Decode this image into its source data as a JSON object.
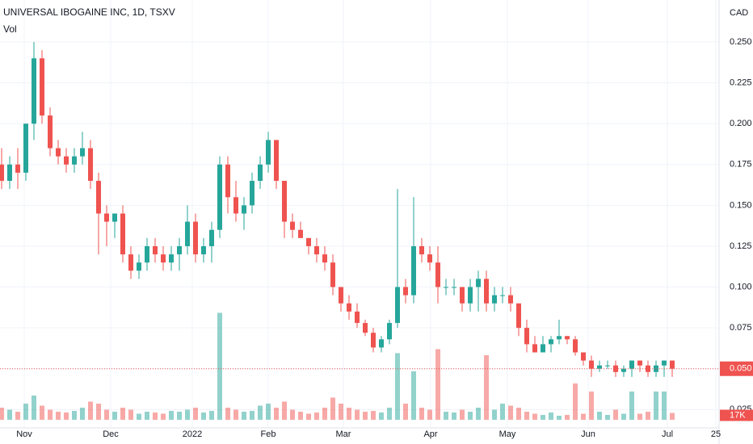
{
  "chart_data": {
    "type": "candlestick",
    "title": "UNIVERSAL IBOGAINE INC, 1D, TSXV",
    "volume_title": "Vol",
    "currency": "CAD",
    "up_color": "#26a69a",
    "down_color": "#ef5350",
    "grid": true,
    "open": [
      0.175,
      0.165,
      0.175,
      0.17,
      0.2,
      0.24,
      0.205,
      0.185,
      0.18,
      0.175,
      0.18,
      0.185,
      0.165,
      0.145,
      0.14,
      0.145,
      0.12,
      0.11,
      0.115,
      0.125,
      0.12,
      0.115,
      0.12,
      0.125,
      0.14,
      0.12,
      0.125,
      0.135,
      0.175,
      0.155,
      0.145,
      0.15,
      0.165,
      0.175,
      0.19,
      0.165,
      0.14,
      0.135,
      0.13,
      0.125,
      0.12,
      0.115,
      0.1,
      0.09,
      0.085,
      0.078,
      0.072,
      0.063,
      0.068,
      0.078,
      0.1,
      0.095,
      0.125,
      0.12,
      0.115,
      0.1,
      0.1,
      0.1,
      0.09,
      0.1,
      0.105,
      0.09,
      0.095,
      0.095,
      0.09,
      0.075,
      0.065,
      0.06,
      0.065,
      0.068,
      0.07,
      0.068,
      0.06,
      0.055,
      0.05,
      0.052,
      0.052,
      0.048,
      0.05,
      0.055,
      0.052,
      0.048,
      0.052,
      0.055
    ],
    "high": [
      0.185,
      0.18,
      0.185,
      0.2,
      0.25,
      0.245,
      0.21,
      0.19,
      0.185,
      0.185,
      0.195,
      0.19,
      0.17,
      0.15,
      0.145,
      0.15,
      0.125,
      0.12,
      0.13,
      0.13,
      0.125,
      0.125,
      0.13,
      0.15,
      0.145,
      0.13,
      0.14,
      0.18,
      0.18,
      0.165,
      0.155,
      0.17,
      0.18,
      0.195,
      0.19,
      0.165,
      0.145,
      0.14,
      0.13,
      0.13,
      0.125,
      0.12,
      0.1,
      0.095,
      0.09,
      0.08,
      0.075,
      0.07,
      0.08,
      0.16,
      0.105,
      0.155,
      0.13,
      0.125,
      0.125,
      0.105,
      0.105,
      0.1,
      0.105,
      0.11,
      0.11,
      0.1,
      0.1,
      0.1,
      0.09,
      0.08,
      0.07,
      0.07,
      0.07,
      0.08,
      0.07,
      0.07,
      0.06,
      0.058,
      0.055,
      0.055,
      0.055,
      0.052,
      0.055,
      0.055,
      0.055,
      0.055,
      0.055,
      0.055
    ],
    "low": [
      0.16,
      0.16,
      0.16,
      0.165,
      0.19,
      0.2,
      0.18,
      0.175,
      0.17,
      0.17,
      0.175,
      0.16,
      0.12,
      0.125,
      0.13,
      0.115,
      0.105,
      0.105,
      0.11,
      0.115,
      0.11,
      0.11,
      0.11,
      0.12,
      0.115,
      0.115,
      0.115,
      0.13,
      0.145,
      0.14,
      0.135,
      0.145,
      0.16,
      0.17,
      0.16,
      0.13,
      0.13,
      0.13,
      0.12,
      0.115,
      0.11,
      0.095,
      0.085,
      0.08,
      0.075,
      0.07,
      0.06,
      0.06,
      0.065,
      0.075,
      0.09,
      0.09,
      0.115,
      0.11,
      0.09,
      0.095,
      0.095,
      0.085,
      0.085,
      0.085,
      0.085,
      0.085,
      0.09,
      0.085,
      0.07,
      0.06,
      0.06,
      0.06,
      0.06,
      0.065,
      0.065,
      0.058,
      0.052,
      0.045,
      0.048,
      0.05,
      0.045,
      0.045,
      0.045,
      0.048,
      0.045,
      0.045,
      0.045,
      0.045
    ],
    "close": [
      0.165,
      0.175,
      0.17,
      0.2,
      0.24,
      0.205,
      0.185,
      0.18,
      0.175,
      0.18,
      0.185,
      0.165,
      0.145,
      0.14,
      0.145,
      0.12,
      0.11,
      0.115,
      0.125,
      0.12,
      0.115,
      0.12,
      0.125,
      0.14,
      0.12,
      0.125,
      0.135,
      0.175,
      0.155,
      0.145,
      0.15,
      0.165,
      0.175,
      0.19,
      0.165,
      0.14,
      0.135,
      0.13,
      0.125,
      0.12,
      0.115,
      0.1,
      0.09,
      0.085,
      0.078,
      0.072,
      0.063,
      0.068,
      0.078,
      0.1,
      0.095,
      0.125,
      0.12,
      0.115,
      0.1,
      0.1,
      0.1,
      0.09,
      0.1,
      0.105,
      0.09,
      0.095,
      0.095,
      0.09,
      0.075,
      0.065,
      0.06,
      0.065,
      0.068,
      0.07,
      0.068,
      0.06,
      0.055,
      0.05,
      0.052,
      0.052,
      0.048,
      0.05,
      0.055,
      0.052,
      0.048,
      0.052,
      0.055,
      0.05
    ],
    "volume": [
      30000,
      25000,
      20000,
      40000,
      60000,
      35000,
      25000,
      20000,
      18000,
      22000,
      30000,
      45000,
      40000,
      25000,
      20000,
      30000,
      25000,
      15000,
      20000,
      18000,
      15000,
      22000,
      20000,
      25000,
      30000,
      18000,
      22000,
      265000,
      30000,
      25000,
      20000,
      22000,
      35000,
      40000,
      30000,
      45000,
      25000,
      20000,
      15000,
      18000,
      30000,
      55000,
      40000,
      30000,
      25000,
      20000,
      22000,
      18000,
      30000,
      165000,
      40000,
      120000,
      30000,
      25000,
      175000,
      20000,
      18000,
      25000,
      20000,
      30000,
      160000,
      25000,
      40000,
      35000,
      30000,
      20000,
      15000,
      12000,
      18000,
      10000,
      12000,
      90000,
      15000,
      70000,
      20000,
      12000,
      25000,
      15000,
      70000,
      15000,
      20000,
      70000,
      70000,
      17000
    ],
    "last_close_label": "0.050",
    "last_volume_label": "17K",
    "ylim": [
      0.0138,
      0.2757
    ],
    "yticks": [
      {
        "value": 0.025,
        "label": "0.025"
      },
      {
        "value": 0.05,
        "label": "0.050"
      },
      {
        "value": 0.075,
        "label": "0.075"
      },
      {
        "value": 0.1,
        "label": "0.100"
      },
      {
        "value": 0.125,
        "label": "0.125"
      },
      {
        "value": 0.15,
        "label": "0.150"
      },
      {
        "value": 0.175,
        "label": "0.175"
      },
      {
        "value": 0.2,
        "label": "0.200"
      },
      {
        "value": 0.225,
        "label": "0.225"
      },
      {
        "value": 0.25,
        "label": "0.250"
      }
    ],
    "volume_ylim": [
      0,
      300000
    ],
    "xlim": [
      -0.2,
      88.8
    ],
    "xticks": [
      {
        "value": 2.8,
        "label": "Nov"
      },
      {
        "value": 13.5,
        "label": "Dec"
      },
      {
        "value": 23.6,
        "label": "2022"
      },
      {
        "value": 33,
        "label": "Feb"
      },
      {
        "value": 42.3,
        "label": "Mar"
      },
      {
        "value": 53.1,
        "label": "Apr"
      },
      {
        "value": 62.6,
        "label": "May"
      },
      {
        "value": 72.6,
        "label": "Jun"
      },
      {
        "value": 82.4,
        "label": "Jul"
      },
      {
        "value": 88.4,
        "label": "25"
      }
    ]
  }
}
